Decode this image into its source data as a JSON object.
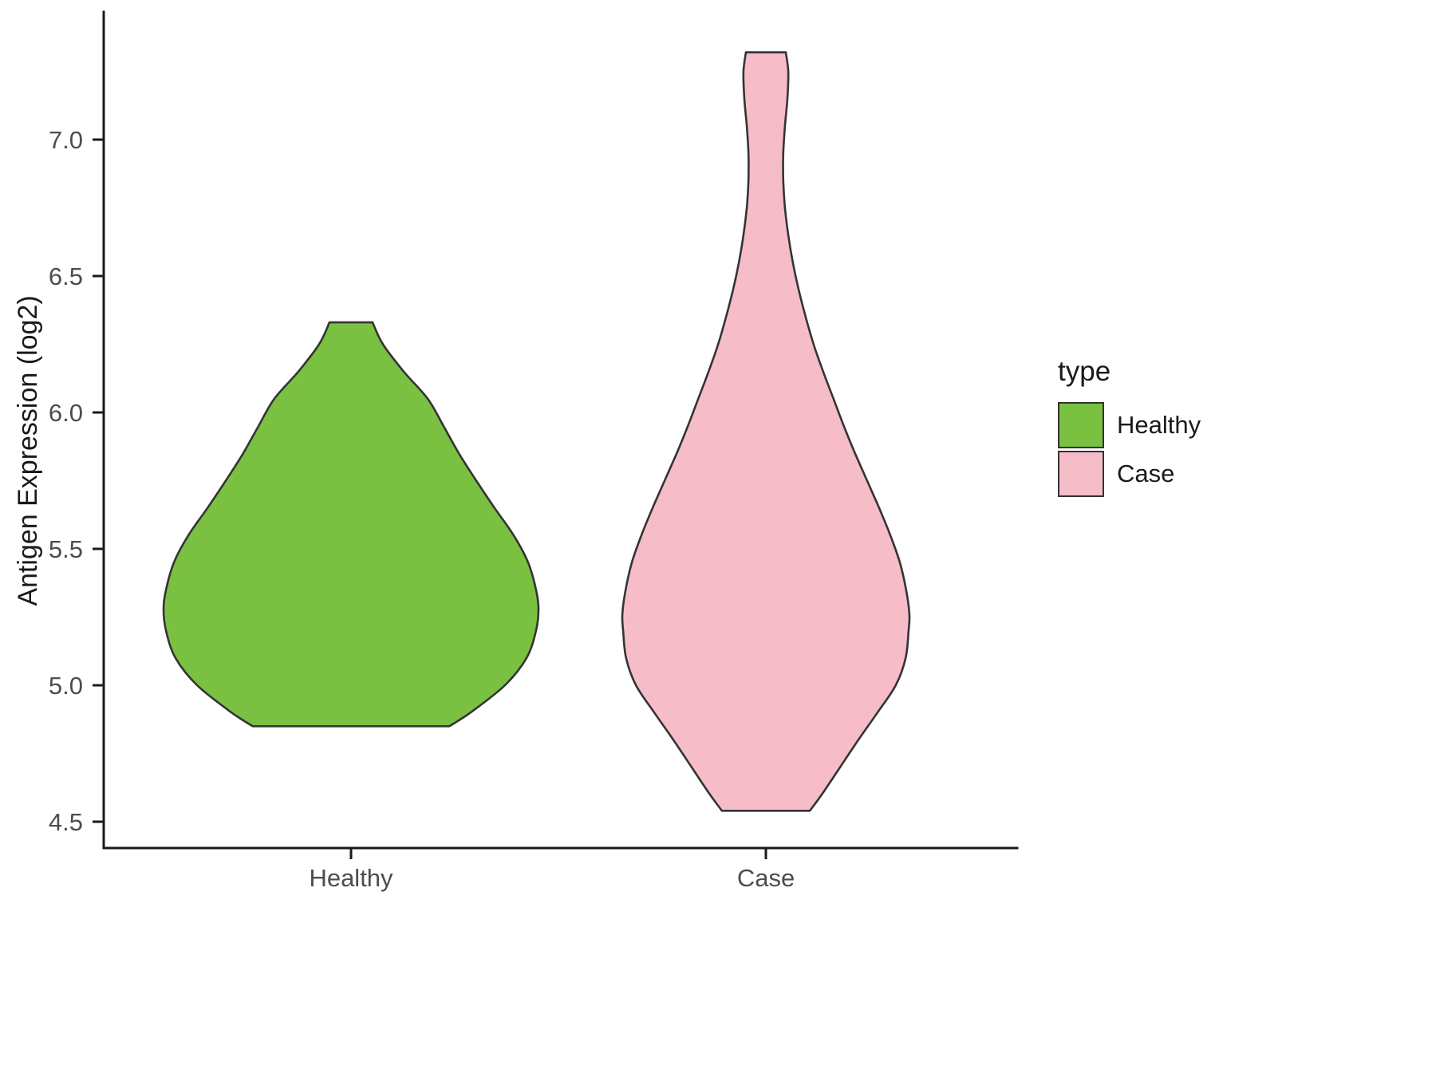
{
  "page": {
    "background": "#FFFFFF"
  },
  "chart_data": {
    "type": "violin",
    "title": "",
    "xlabel": "",
    "ylabel": "Antigen Expression (log2)",
    "categories": [
      "Healthy",
      "Case"
    ],
    "y_ticks": [
      "4.5",
      "5.0",
      "5.5",
      "6.0",
      "6.5",
      "7.0"
    ],
    "ylim": [
      4.4,
      7.47
    ],
    "grid": false,
    "legend": {
      "title": "type",
      "position": "right",
      "entries": [
        {
          "label": "Healthy",
          "color": "#7AC142"
        },
        {
          "label": "Case",
          "color": "#F6BDC9"
        }
      ]
    },
    "style": {
      "outline_color": "#343434",
      "axis_color": "#1A1A1A",
      "tick_label_color": "#4D4D4D"
    },
    "series": [
      {
        "name": "Healthy",
        "color": "#7AC142",
        "y_min": 4.85,
        "y_max": 6.33,
        "peak_y": 5.28,
        "profile": [
          [
            4.85,
            0.237
          ],
          [
            4.9,
            0.288
          ],
          [
            5.0,
            0.371
          ],
          [
            5.1,
            0.423
          ],
          [
            5.2,
            0.446
          ],
          [
            5.28,
            0.452
          ],
          [
            5.35,
            0.446
          ],
          [
            5.45,
            0.427
          ],
          [
            5.55,
            0.392
          ],
          [
            5.65,
            0.346
          ],
          [
            5.75,
            0.302
          ],
          [
            5.85,
            0.26
          ],
          [
            5.95,
            0.223
          ],
          [
            6.05,
            0.185
          ],
          [
            6.15,
            0.127
          ],
          [
            6.25,
            0.077
          ],
          [
            6.33,
            0.052
          ]
        ]
      },
      {
        "name": "Case",
        "color": "#F6BDC9",
        "y_min": 4.54,
        "y_max": 7.32,
        "peak_y": 5.26,
        "profile": [
          [
            4.54,
            0.106
          ],
          [
            4.6,
            0.135
          ],
          [
            4.7,
            0.179
          ],
          [
            4.8,
            0.223
          ],
          [
            4.9,
            0.269
          ],
          [
            5.0,
            0.313
          ],
          [
            5.1,
            0.337
          ],
          [
            5.2,
            0.344
          ],
          [
            5.26,
            0.346
          ],
          [
            5.35,
            0.338
          ],
          [
            5.45,
            0.323
          ],
          [
            5.55,
            0.3
          ],
          [
            5.65,
            0.273
          ],
          [
            5.75,
            0.244
          ],
          [
            5.85,
            0.215
          ],
          [
            5.95,
            0.188
          ],
          [
            6.05,
            0.163
          ],
          [
            6.15,
            0.138
          ],
          [
            6.25,
            0.115
          ],
          [
            6.35,
            0.096
          ],
          [
            6.45,
            0.079
          ],
          [
            6.55,
            0.065
          ],
          [
            6.65,
            0.054
          ],
          [
            6.75,
            0.046
          ],
          [
            6.85,
            0.042
          ],
          [
            6.95,
            0.042
          ],
          [
            7.05,
            0.046
          ],
          [
            7.15,
            0.052
          ],
          [
            7.25,
            0.054
          ],
          [
            7.32,
            0.048
          ]
        ]
      }
    ]
  }
}
